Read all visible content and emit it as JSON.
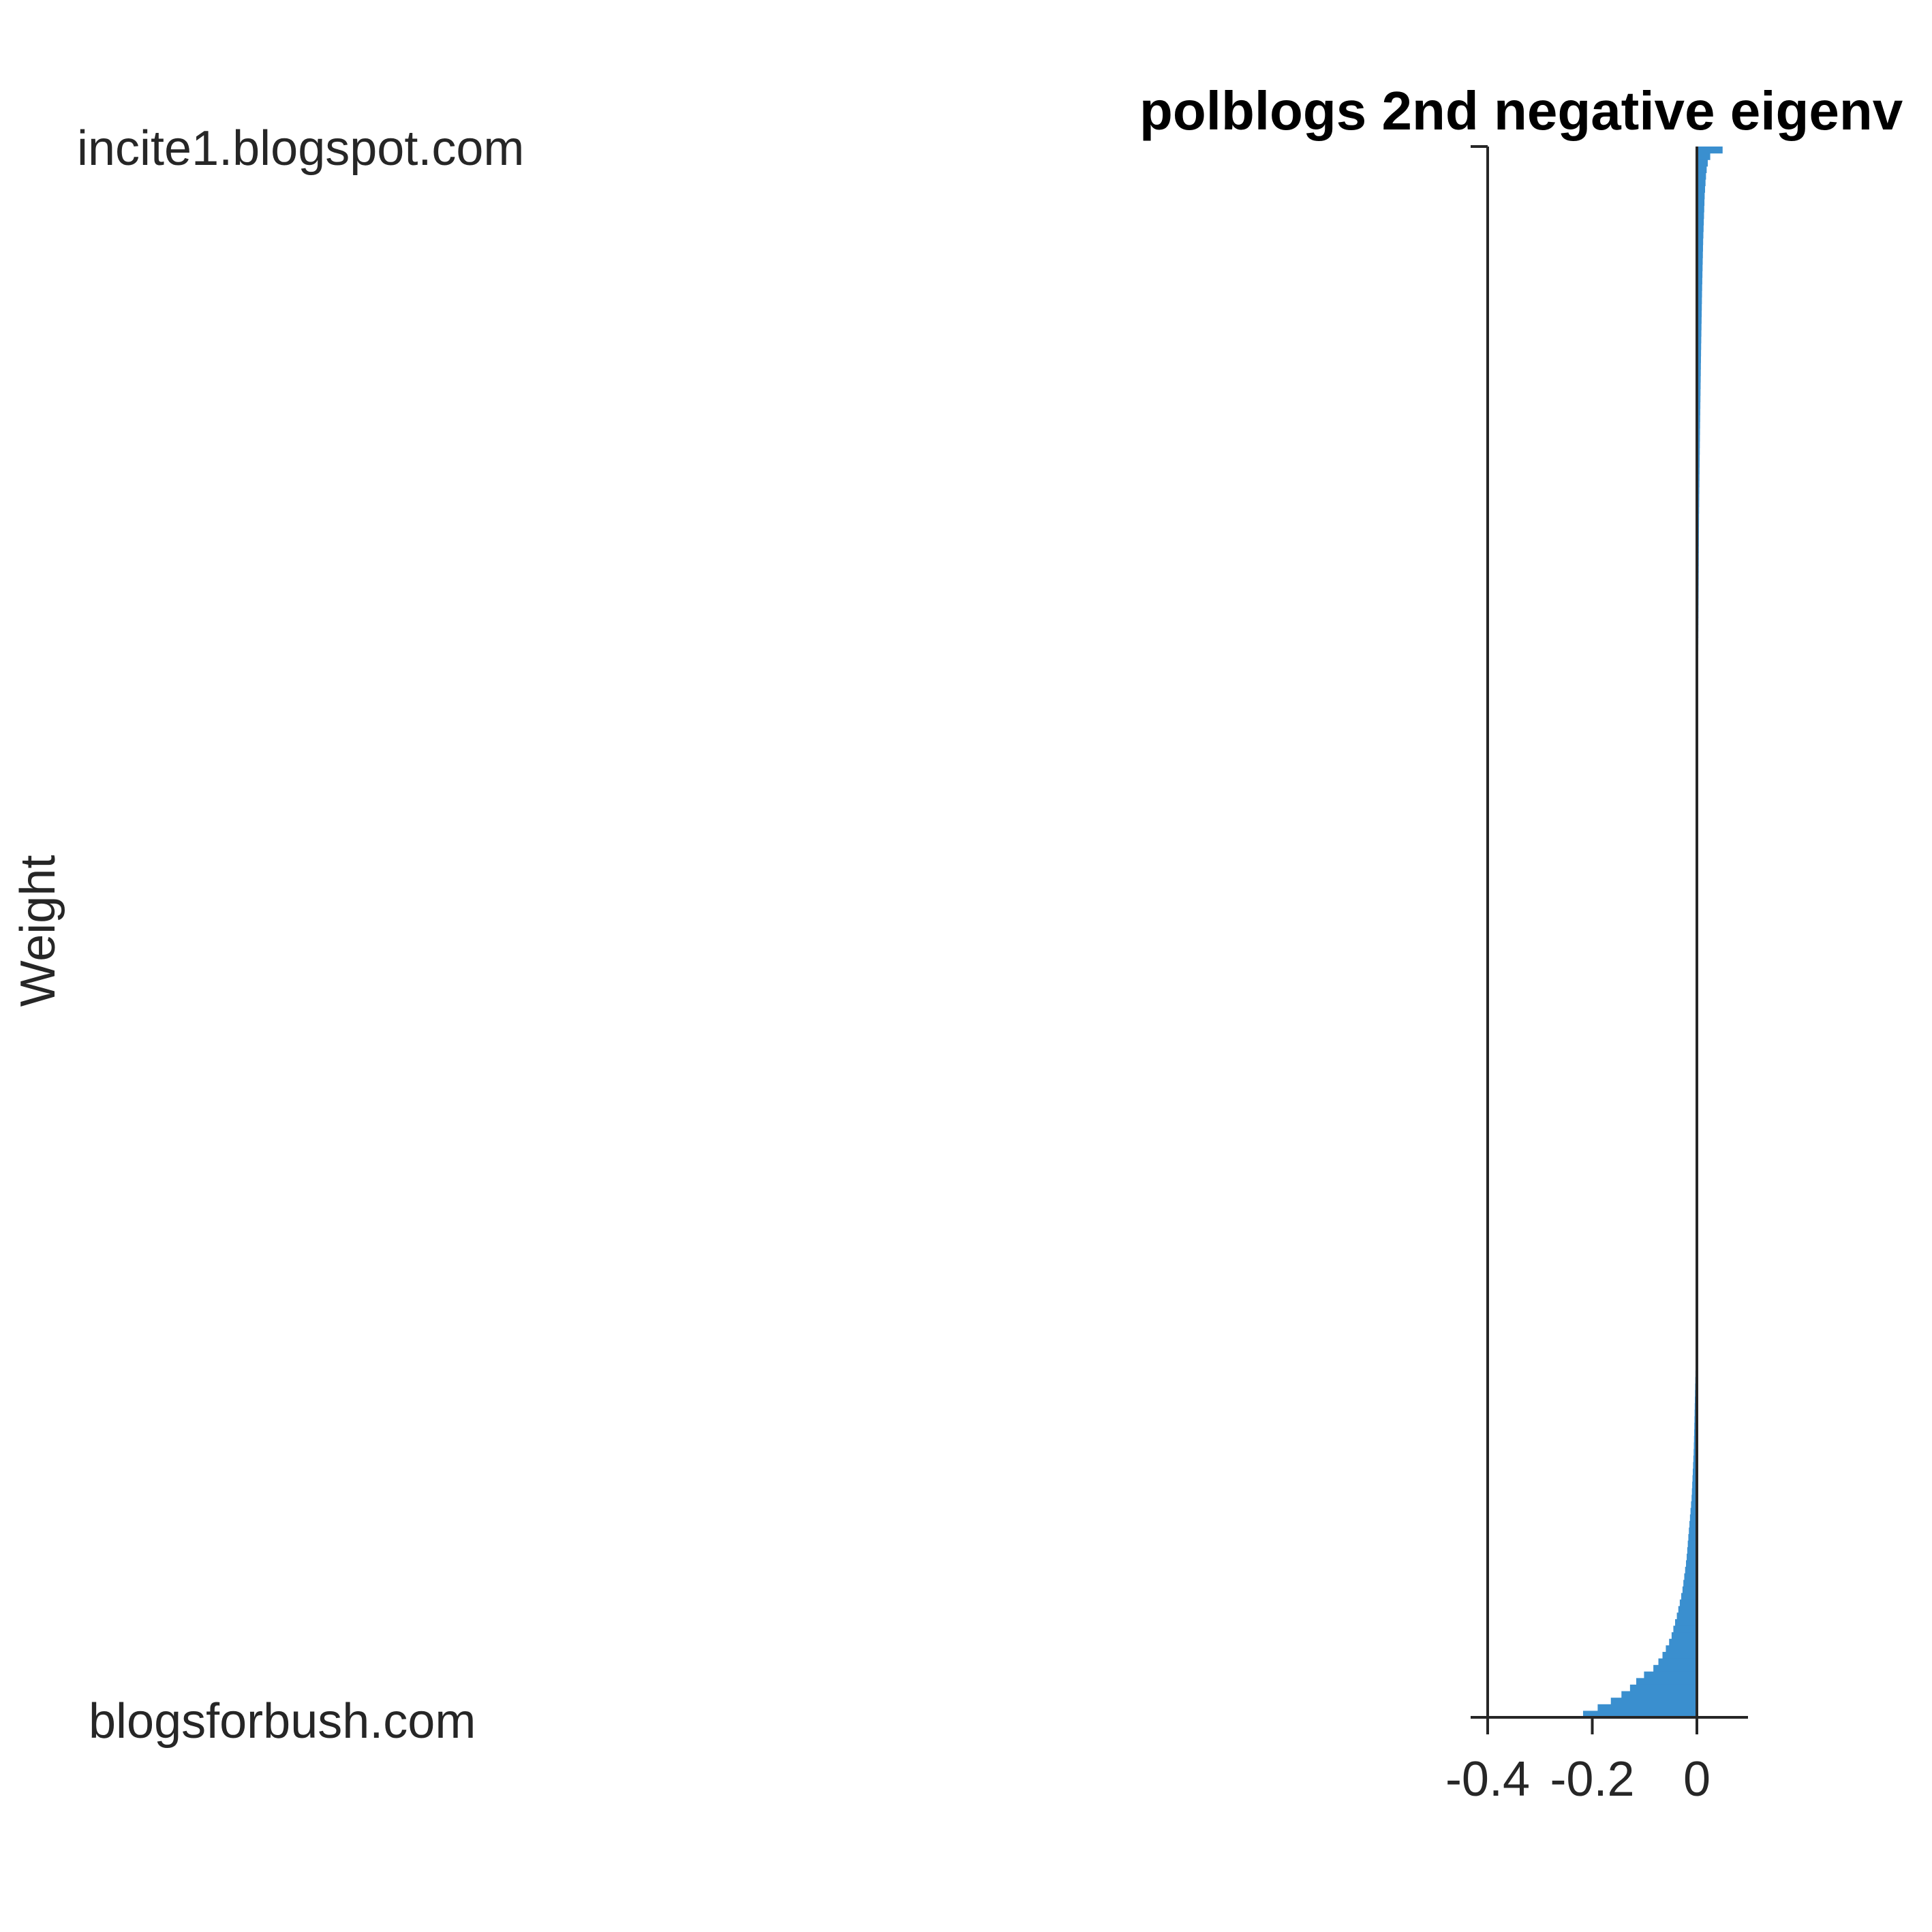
{
  "chart_data": {
    "type": "bar",
    "orientation": "horizontal",
    "title": "polblogs 2nd negative eigenv",
    "xlabel": "",
    "ylabel": "Weight",
    "xlim": [
      -0.4,
      0.1
    ],
    "xticks": [
      -0.4,
      -0.2,
      0
    ],
    "xtick_labels": [
      "-0.4",
      "-0.2",
      "0"
    ],
    "category_labels": {
      "top": "incite1.blogspot.com",
      "bottom": "blogsforbush.com"
    },
    "bar_color": "#3a8fcf",
    "grid": false,
    "legend": "none",
    "profile": [
      {
        "rank": 0.0,
        "value": 0.07
      },
      {
        "rank": 0.004,
        "value": 0.03
      },
      {
        "rank": 0.008,
        "value": 0.022
      },
      {
        "rank": 0.016,
        "value": 0.018
      },
      {
        "rank": 0.03,
        "value": 0.015
      },
      {
        "rank": 0.06,
        "value": 0.012
      },
      {
        "rank": 0.09,
        "value": 0.01
      },
      {
        "rank": 0.13,
        "value": 0.008
      },
      {
        "rank": 0.18,
        "value": 0.006
      },
      {
        "rank": 0.24,
        "value": 0.004
      },
      {
        "rank": 0.3,
        "value": 0.003
      },
      {
        "rank": 0.36,
        "value": 0.002
      },
      {
        "rank": 0.42,
        "value": 0.001
      },
      {
        "rank": 0.47,
        "value": 0.0005
      },
      {
        "rank": 0.5,
        "value": 0.0
      },
      {
        "rank": 0.6,
        "value": -0.0005
      },
      {
        "rank": 0.7,
        "value": -0.001
      },
      {
        "rank": 0.77,
        "value": -0.002
      },
      {
        "rank": 0.8,
        "value": -0.004
      },
      {
        "rank": 0.83,
        "value": -0.006
      },
      {
        "rank": 0.86,
        "value": -0.01
      },
      {
        "rank": 0.88,
        "value": -0.015
      },
      {
        "rank": 0.9,
        "value": -0.02
      },
      {
        "rank": 0.92,
        "value": -0.028
      },
      {
        "rank": 0.935,
        "value": -0.038
      },
      {
        "rank": 0.95,
        "value": -0.05
      },
      {
        "rank": 0.96,
        "value": -0.065
      },
      {
        "rank": 0.968,
        "value": -0.08
      },
      {
        "rank": 0.975,
        "value": -0.11
      },
      {
        "rank": 0.982,
        "value": -0.13
      },
      {
        "rank": 0.988,
        "value": -0.155
      },
      {
        "rank": 0.993,
        "value": -0.185
      },
      {
        "rank": 0.997,
        "value": -0.21
      },
      {
        "rank": 1.0,
        "value": -0.235
      }
    ]
  }
}
